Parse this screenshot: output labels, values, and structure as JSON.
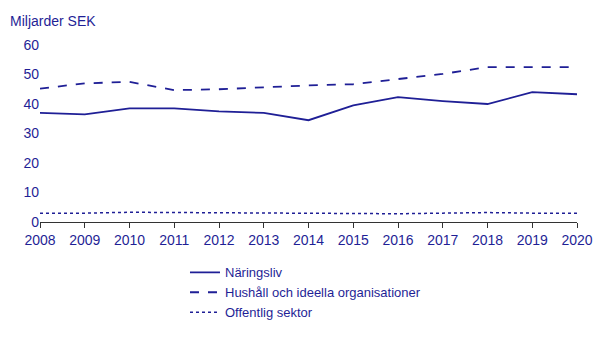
{
  "chart_data": {
    "type": "line",
    "ylabel": "Miljarder SEK",
    "categories": [
      "2008",
      "2009",
      "2010",
      "2011",
      "2012",
      "2013",
      "2014",
      "2015",
      "2016",
      "2017",
      "2018",
      "2019",
      "2020"
    ],
    "series": [
      {
        "name": "Näringsliv",
        "color": "#1f1f96",
        "line_style": "solid",
        "values": [
          37,
          36.5,
          38.5,
          38.5,
          37.5,
          37,
          34.5,
          39.5,
          42.3,
          41,
          40,
          44,
          43.3
        ]
      },
      {
        "name": "Hushåll och ideella organisationer",
        "color": "#1f1f96",
        "line_style": "dash",
        "values": [
          45.2,
          47,
          47.5,
          44.7,
          45,
          45.7,
          46.3,
          46.7,
          48.5,
          50.2,
          52.5,
          52.5,
          52.5
        ]
      },
      {
        "name": "Offentlig sektor",
        "color": "#1f1f96",
        "line_style": "dot",
        "values": [
          3,
          3,
          3.3,
          3.2,
          3,
          3,
          2.8,
          2.7,
          2.8,
          3,
          3.2,
          3,
          3
        ]
      }
    ],
    "ylim": [
      0,
      60
    ],
    "yticks": [
      0,
      10,
      20,
      30,
      40,
      50,
      60
    ],
    "grid": false,
    "legend": "bottom"
  }
}
